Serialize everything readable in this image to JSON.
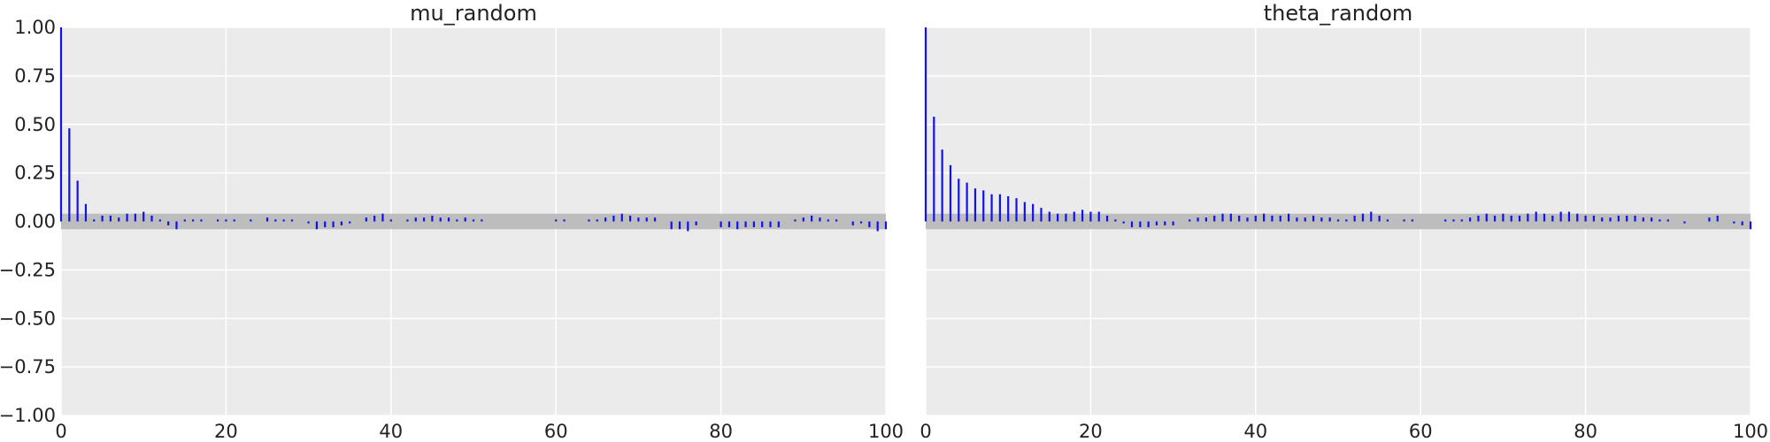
{
  "colors": {
    "stem": "#1010f0",
    "band": "#bdbdbd",
    "panel_background": "#ebebeb",
    "grid": "#ffffff",
    "text": "#222222"
  },
  "chart_data": [
    {
      "type": "bar",
      "title": "mu_random",
      "xlabel": "",
      "ylabel": "",
      "xlim": [
        0,
        100
      ],
      "ylim": [
        -1,
        1
      ],
      "x_ticks": [
        "0",
        "20",
        "40",
        "60",
        "80",
        "100"
      ],
      "y_ticks": [
        "1.00",
        "0.75",
        "0.50",
        "0.25",
        "0.00",
        "−0.25",
        "−0.50",
        "−0.75",
        "−1.00"
      ],
      "grid": true,
      "confidence_band": [
        -0.04,
        0.04
      ],
      "lags": "0-100",
      "values": [
        1.0,
        0.48,
        0.21,
        0.09,
        0.01,
        0.03,
        0.03,
        0.02,
        0.04,
        0.04,
        0.05,
        0.03,
        0.01,
        -0.02,
        -0.04,
        0.01,
        0.01,
        0.01,
        0.0,
        0.01,
        0.01,
        0.01,
        0.0,
        0.01,
        0.0,
        0.02,
        0.01,
        0.01,
        0.01,
        0.0,
        -0.01,
        -0.04,
        -0.03,
        -0.03,
        -0.02,
        -0.01,
        0.0,
        0.02,
        0.03,
        0.04,
        0.01,
        0.0,
        0.01,
        0.02,
        0.02,
        0.03,
        0.02,
        0.02,
        0.01,
        0.02,
        0.01,
        0.01,
        0.0,
        0.0,
        0.0,
        0.0,
        0.0,
        0.0,
        0.0,
        0.0,
        0.01,
        0.01,
        0.0,
        0.0,
        0.01,
        0.01,
        0.02,
        0.03,
        0.04,
        0.03,
        0.02,
        0.02,
        0.02,
        0.0,
        -0.04,
        -0.04,
        -0.05,
        -0.02,
        0.0,
        0.0,
        -0.03,
        -0.03,
        -0.04,
        -0.03,
        -0.03,
        -0.03,
        -0.03,
        -0.03,
        0.0,
        0.01,
        0.02,
        0.03,
        0.02,
        0.01,
        0.01,
        0.0,
        -0.02,
        -0.01,
        -0.03,
        -0.05,
        -0.04
      ]
    },
    {
      "type": "bar",
      "title": "theta_random",
      "xlabel": "",
      "ylabel": "",
      "xlim": [
        0,
        100
      ],
      "ylim": [
        -1,
        1
      ],
      "x_ticks": [
        "0",
        "20",
        "40",
        "60",
        "80",
        "100"
      ],
      "y_ticks": [],
      "grid": true,
      "confidence_band": [
        -0.04,
        0.04
      ],
      "lags": "0-100",
      "values": [
        1.0,
        0.54,
        0.37,
        0.29,
        0.22,
        0.2,
        0.17,
        0.16,
        0.14,
        0.14,
        0.13,
        0.12,
        0.1,
        0.09,
        0.07,
        0.05,
        0.04,
        0.04,
        0.05,
        0.06,
        0.05,
        0.05,
        0.03,
        0.01,
        -0.01,
        -0.03,
        -0.03,
        -0.03,
        -0.02,
        -0.02,
        -0.02,
        0.0,
        0.01,
        0.02,
        0.02,
        0.03,
        0.04,
        0.04,
        0.03,
        0.02,
        0.03,
        0.04,
        0.03,
        0.03,
        0.04,
        0.02,
        0.02,
        0.03,
        0.02,
        0.02,
        0.01,
        0.01,
        0.03,
        0.04,
        0.05,
        0.03,
        0.01,
        0.0,
        0.01,
        0.01,
        0.0,
        0.0,
        0.0,
        0.01,
        0.01,
        0.01,
        0.02,
        0.03,
        0.04,
        0.03,
        0.04,
        0.03,
        0.03,
        0.04,
        0.05,
        0.04,
        0.03,
        0.05,
        0.05,
        0.04,
        0.03,
        0.03,
        0.02,
        0.02,
        0.03,
        0.03,
        0.03,
        0.02,
        0.02,
        0.01,
        0.01,
        0.0,
        -0.01,
        0.0,
        0.0,
        0.02,
        0.03,
        0.0,
        -0.01,
        -0.02,
        -0.04
      ]
    }
  ]
}
